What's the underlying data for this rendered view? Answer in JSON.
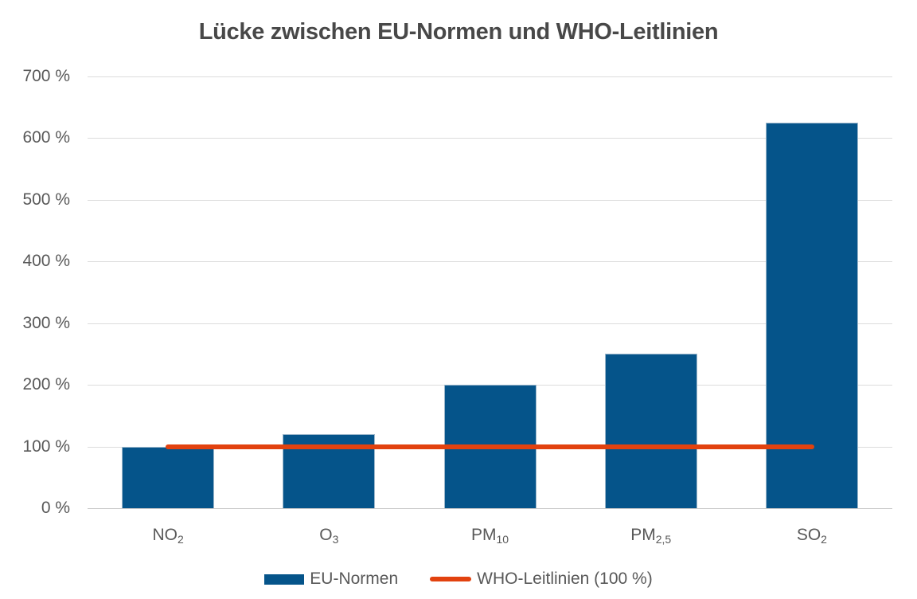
{
  "chart_data": {
    "type": "bar",
    "title": "Lücke zwischen EU-Normen und WHO-Leitlinien",
    "categories": [
      {
        "base": "NO",
        "sub": "2"
      },
      {
        "base": "O",
        "sub": "3"
      },
      {
        "base": "PM",
        "sub": "10"
      },
      {
        "base": "PM",
        "sub": "2,5"
      },
      {
        "base": "SO",
        "sub": "2"
      }
    ],
    "series": [
      {
        "name": "EU-Normen",
        "type": "bar",
        "color": "#05548a",
        "values": [
          100,
          120,
          200,
          250,
          625
        ]
      },
      {
        "name": "WHO-Leitlinien (100 %)",
        "type": "line",
        "color": "#e2420f",
        "values": [
          100,
          100,
          100,
          100,
          100
        ]
      }
    ],
    "xlabel": "",
    "ylabel": "",
    "ylim": [
      0,
      700
    ],
    "ytick_step": 100,
    "ytick_labels": [
      "0 %",
      "100 %",
      "200 %",
      "300 %",
      "400 %",
      "500 %",
      "600 %",
      "700 %"
    ],
    "grid": true,
    "legend_position": "bottom",
    "colors": {
      "bar": "#05548a",
      "bar_border": "#9db8cc",
      "line": "#e2420f",
      "grid": "#dcdcdc",
      "axis_line": "#c9c9c9",
      "title_text": "#484848",
      "axis_text": "#595959",
      "background": "#ffffff"
    }
  }
}
